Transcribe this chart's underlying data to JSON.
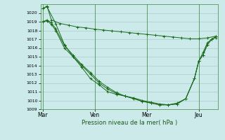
{
  "xlabel": "Pression niveau de la mer( hPa )",
  "bg_color": "#cceaea",
  "grid_color": "#aacccc",
  "line_color": "#1a6b1a",
  "ylim": [
    1009,
    1021
  ],
  "day_labels": [
    "Mar",
    "Ven",
    "Mer",
    "Jeu"
  ],
  "day_positions": [
    0,
    12,
    24,
    36
  ],
  "total_points": 41,
  "s1_x": [
    0,
    1,
    2,
    4,
    6,
    8,
    10,
    12,
    14,
    16,
    18,
    20,
    22,
    24,
    26,
    28,
    30,
    32,
    34,
    36,
    38,
    40
  ],
  "s1_y": [
    1020.5,
    1020.8,
    1019.2,
    1018.8,
    1018.6,
    1018.4,
    1018.3,
    1018.15,
    1018.05,
    1017.95,
    1017.85,
    1017.75,
    1017.65,
    1017.55,
    1017.45,
    1017.35,
    1017.25,
    1017.15,
    1017.05,
    1017.05,
    1017.15,
    1017.35
  ],
  "s2_x": [
    0,
    1,
    3,
    5,
    7,
    9,
    11,
    13,
    15,
    17,
    19,
    21,
    23,
    25,
    27,
    29,
    31,
    33,
    35,
    36,
    37,
    38,
    39,
    40
  ],
  "s2_y": [
    1020.5,
    1020.7,
    1018.8,
    1016.4,
    1015.0,
    1013.8,
    1012.5,
    1011.8,
    1011.0,
    1010.7,
    1010.5,
    1010.3,
    1010.0,
    1009.8,
    1009.6,
    1009.5,
    1009.7,
    1010.2,
    1012.5,
    1014.5,
    1015.2,
    1016.4,
    1017.0,
    1017.3
  ],
  "s3_x": [
    0,
    1,
    2,
    3,
    5,
    7,
    9,
    11,
    13,
    15,
    17,
    19,
    21,
    23,
    25,
    27,
    29,
    31,
    33,
    35,
    36,
    37,
    38,
    39,
    40
  ],
  "s3_y": [
    1019.0,
    1019.1,
    1018.7,
    1018.0,
    1016.0,
    1015.0,
    1014.0,
    1013.0,
    1012.0,
    1011.3,
    1010.8,
    1010.5,
    1010.2,
    1009.9,
    1009.7,
    1009.5,
    1009.5,
    1009.6,
    1010.2,
    1012.5,
    1014.5,
    1015.2,
    1016.4,
    1017.0,
    1017.2
  ],
  "s4_x": [
    0,
    1,
    2,
    3,
    5,
    7,
    9,
    11,
    13,
    15,
    17,
    19,
    21,
    23,
    25,
    27,
    29,
    31,
    33,
    35,
    36,
    37,
    38,
    39,
    40
  ],
  "s4_y": [
    1019.0,
    1019.2,
    1018.9,
    1018.2,
    1016.3,
    1015.2,
    1014.1,
    1013.2,
    1012.2,
    1011.5,
    1010.9,
    1010.5,
    1010.2,
    1009.9,
    1009.7,
    1009.5,
    1009.5,
    1009.6,
    1010.2,
    1012.5,
    1014.5,
    1015.5,
    1016.6,
    1017.0,
    1017.3
  ]
}
